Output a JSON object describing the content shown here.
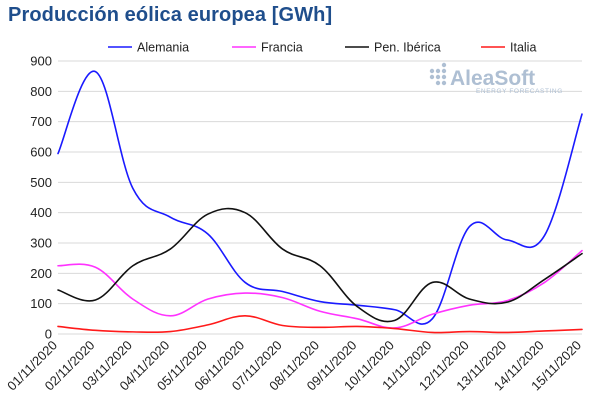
{
  "chart_data": {
    "type": "line",
    "title": "Producción eólica europea [GWh]",
    "xlabel": "",
    "ylabel": "",
    "categories": [
      "01/11/2020",
      "02/11/2020",
      "03/11/2020",
      "04/11/2020",
      "05/11/2020",
      "06/11/2020",
      "07/11/2020",
      "08/11/2020",
      "09/11/2020",
      "10/11/2020",
      "11/11/2020",
      "12/11/2020",
      "13/11/2020",
      "14/11/2020",
      "15/11/2020"
    ],
    "ylim": [
      0,
      900
    ],
    "yticks": [
      "0",
      "100",
      "200",
      "300",
      "400",
      "500",
      "600",
      "700",
      "800",
      "900"
    ],
    "grid": "horizontal",
    "legend_position": "top",
    "series": [
      {
        "name": "Alemania",
        "color": "#1a1aff",
        "values": [
          595,
          865,
          480,
          385,
          330,
          170,
          140,
          107,
          95,
          80,
          50,
          355,
          310,
          325,
          725
        ]
      },
      {
        "name": "Francia",
        "color": "#ff33ff",
        "values": [
          225,
          220,
          115,
          60,
          115,
          135,
          120,
          75,
          50,
          20,
          65,
          95,
          110,
          170,
          275
        ]
      },
      {
        "name": "Pen. Ibérica",
        "color": "#111111",
        "values": [
          145,
          112,
          225,
          280,
          395,
          400,
          280,
          225,
          90,
          45,
          170,
          115,
          105,
          180,
          265
        ]
      },
      {
        "name": "Italia",
        "color": "#ff1a1a",
        "values": [
          25,
          12,
          7,
          8,
          30,
          60,
          28,
          22,
          25,
          18,
          5,
          8,
          5,
          10,
          15
        ]
      }
    ]
  },
  "logo": {
    "name": "AleaSoft",
    "tagline": "ENERGY FORECASTING"
  }
}
